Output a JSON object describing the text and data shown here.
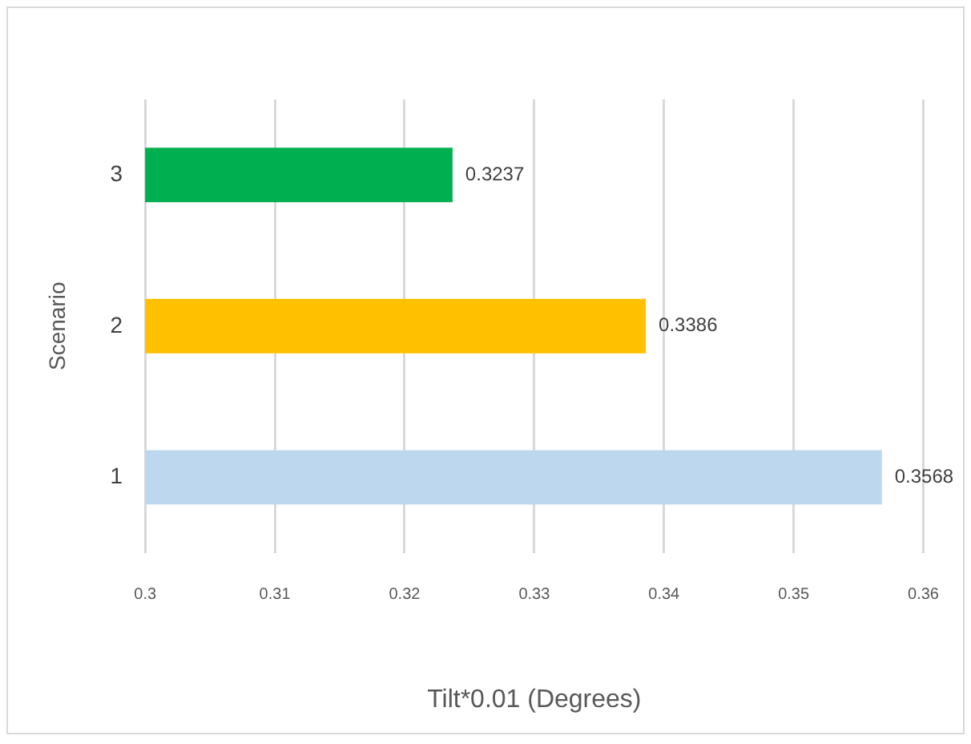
{
  "chart_data": {
    "type": "bar",
    "orientation": "horizontal",
    "xlabel": "Tilt*0.01 (Degrees)",
    "ylabel": "Scenario",
    "categories": [
      "3",
      "2",
      "1"
    ],
    "values": [
      0.3237,
      0.3386,
      0.3568
    ],
    "colors": [
      "#00b050",
      "#ffc000",
      "#bdd7ee"
    ],
    "xlim": [
      0.3,
      0.36
    ],
    "xticks": [
      0.3,
      0.31,
      0.32,
      0.33,
      0.34,
      0.35,
      0.36
    ],
    "grid": "x",
    "legend": false,
    "data_labels": true
  }
}
